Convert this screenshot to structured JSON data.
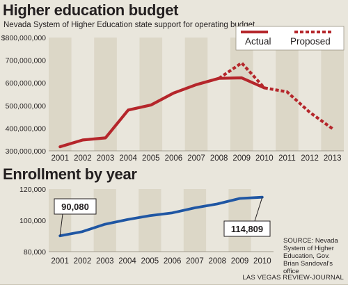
{
  "titles": {
    "budget_title": "Higher education budget",
    "budget_subtitle": "Nevada System of Higher Education state support for operating budget",
    "enrollment_title": "Enrollment by year"
  },
  "source_note": "SOURCE: Nevada System of Higher Education, Gov. Brian Sandoval's office",
  "credit": "LAS VEGAS REVIEW-JOURNAL",
  "colors": {
    "actual": "#b5262b",
    "enrollment": "#1f56a3",
    "band": "#dcd7c7",
    "background": "#e9e6dc"
  },
  "chart_data": [
    {
      "type": "line",
      "title": "Higher education budget",
      "subtitle": "Nevada System of Higher Education state support for operating budget",
      "x": [
        "2001",
        "2002",
        "2003",
        "2004",
        "2005",
        "2006",
        "2007",
        "2008",
        "2009",
        "2010",
        "2011",
        "2012",
        "2013"
      ],
      "ylim": [
        300000000,
        800000000
      ],
      "yticks": [
        {
          "v": 300000000,
          "label": "300,000,000"
        },
        {
          "v": 400000000,
          "label": "400,000,000"
        },
        {
          "v": 500000000,
          "label": "500,000,000"
        },
        {
          "v": 600000000,
          "label": "600,000,000"
        },
        {
          "v": 700000000,
          "label": "700,000,000"
        },
        {
          "v": 800000000,
          "label": "$800,000,000"
        }
      ],
      "grid": "alternating vertical bands",
      "legend_position": "top-right",
      "series": [
        {
          "name": "Actual",
          "style": "solid",
          "values": [
            318000000,
            348000000,
            357000000,
            480000000,
            502000000,
            555000000,
            592000000,
            620000000,
            622000000,
            578000000,
            null,
            null,
            null
          ]
        },
        {
          "name": "Proposed",
          "style": "dashed",
          "values": [
            null,
            null,
            null,
            null,
            null,
            null,
            null,
            620000000,
            688000000,
            578000000,
            560000000,
            470000000,
            398000000
          ]
        }
      ]
    },
    {
      "type": "line",
      "title": "Enrollment by year",
      "x": [
        "2001",
        "2002",
        "2003",
        "2004",
        "2005",
        "2006",
        "2007",
        "2008",
        "2009",
        "2010"
      ],
      "ylim": [
        80000,
        120000
      ],
      "yticks": [
        {
          "v": 80000,
          "label": "80,000"
        },
        {
          "v": 100000,
          "label": "100,000"
        },
        {
          "v": 120000,
          "label": "120,000"
        }
      ],
      "grid": "alternating vertical bands",
      "series": [
        {
          "values": [
            90080,
            92800,
            97500,
            100500,
            103000,
            104800,
            108000,
            110500,
            114000,
            114809
          ]
        }
      ],
      "annotations": [
        {
          "label": "90,080",
          "x": "2001"
        },
        {
          "label": "114,809",
          "x": "2010"
        }
      ]
    }
  ]
}
